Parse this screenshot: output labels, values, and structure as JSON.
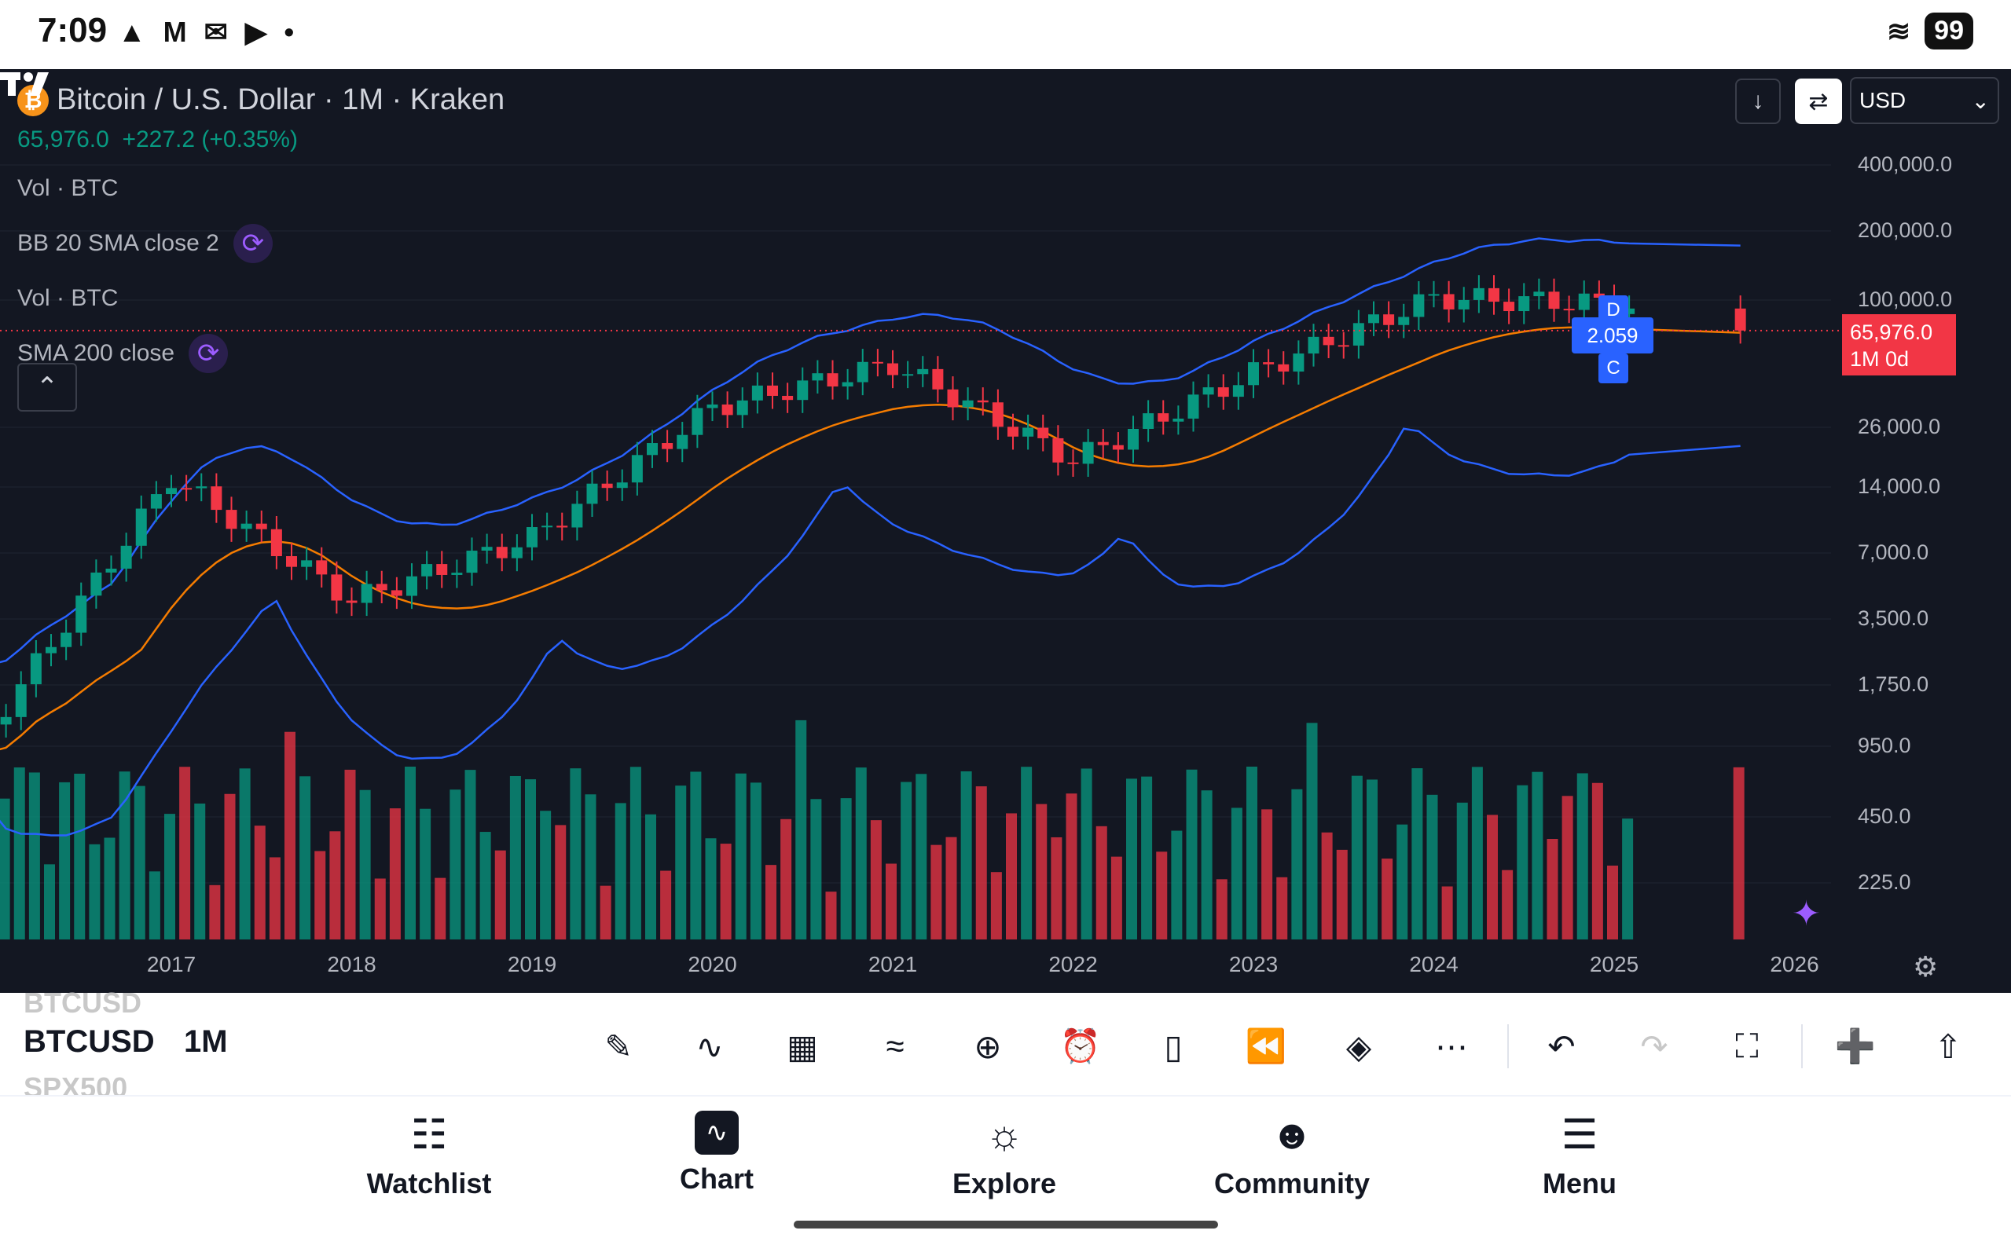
{
  "status_bar": {
    "time": "7:09",
    "battery": "99",
    "icons": [
      "brave-icon",
      "mc-icon",
      "gmail-icon",
      "youtube-icon",
      "dot-icon"
    ]
  },
  "legend": {
    "title": "Bitcoin / U.S. Dollar · 1M · Kraken",
    "price": "65,976.0",
    "change": "+227.2 (+0.35%)",
    "indicators": [
      "Vol · BTC",
      "BB 20 SMA close 2",
      "Vol · BTC",
      "SMA 200 close"
    ]
  },
  "controls": {
    "currency": "USD"
  },
  "price_tag": {
    "price": "65,976.0",
    "timeframe": "1M 0d"
  },
  "markers": {
    "d": "D",
    "c": "C",
    "value": "2.059"
  },
  "y_axis_labels": [
    "400,000.0",
    "200,000.0",
    "100,000.0",
    "26,000.0",
    "14,000.0",
    "7,000.0",
    "3,500.0",
    "1,750.0",
    "950.0",
    "450.0",
    "225.0"
  ],
  "x_axis_labels": [
    "2017",
    "2018",
    "2019",
    "2020",
    "2021",
    "2022",
    "2023",
    "2024",
    "2025",
    "2026"
  ],
  "colors": {
    "up": "#089981",
    "down": "#f23645",
    "bb": "#2962ff",
    "sma": "#f57c00",
    "bg": "#131722"
  },
  "toolbar": {
    "symbol_prev": "BTCUSD",
    "symbol": "BTCUSD",
    "symbol_next": "SPX500",
    "interval": "1M",
    "tools": [
      "draw-icon",
      "indicators-icon",
      "layout-icon",
      "compare-icon",
      "add-icon",
      "alert-icon",
      "bar-style-icon",
      "replay-icon",
      "layers-icon",
      "more-icon",
      "undo-icon",
      "redo-icon",
      "fullscreen-icon",
      "idea-icon",
      "share-icon"
    ]
  },
  "nav": {
    "watchlist": "Watchlist",
    "chart": "Chart",
    "explore": "Explore",
    "community": "Community",
    "menu": "Menu"
  },
  "chart_data": {
    "type": "candlestick",
    "symbol": "Bitcoin / U.S. Dollar",
    "interval": "1M",
    "exchange": "Kraken",
    "y_scale": "log",
    "x": [
      "2017",
      "2018",
      "2019",
      "2020",
      "2021",
      "2022",
      "2023",
      "2024",
      "2025",
      "2026"
    ],
    "ylim": [
      225,
      400000
    ],
    "yearly_closes": [
      {
        "year": "2016",
        "close": 960
      },
      {
        "year": "2017",
        "close": 13800
      },
      {
        "year": "2018",
        "close": 3700
      },
      {
        "year": "2019",
        "close": 7200
      },
      {
        "year": "2020",
        "close": 29000
      },
      {
        "year": "2021",
        "close": 46000
      },
      {
        "year": "2022",
        "close": 16500
      },
      {
        "year": "2023",
        "close": 42000
      },
      {
        "year": "2024",
        "close": 93400
      },
      {
        "year": "2025",
        "close": 88000
      },
      {
        "year": "2026",
        "close": 65976
      }
    ],
    "series": [
      {
        "name": "BB 20 SMA close 2"
      },
      {
        "name": "SMA 200 close"
      },
      {
        "name": "Vol · BTC"
      }
    ]
  }
}
